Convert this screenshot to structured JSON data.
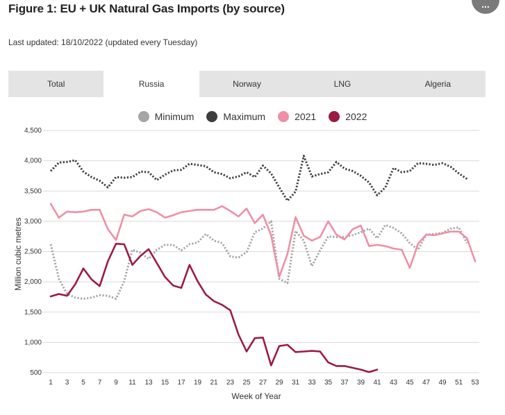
{
  "header": {
    "title": "Figure 1: EU + UK Natural Gas Imports (by source)",
    "subtitle": "Last updated: 18/10/2022 (updated every Tuesday)",
    "menu_label": "..."
  },
  "tabs": [
    {
      "label": "Total",
      "active": false
    },
    {
      "label": "Russia",
      "active": true
    },
    {
      "label": "Norway",
      "active": false
    },
    {
      "label": "LNG",
      "active": false
    },
    {
      "label": "Algeria",
      "active": false
    }
  ],
  "colors": {
    "minimum": "#a6a6a6",
    "maximum": "#3d3d3d",
    "y2021": "#ef8fa6",
    "y2022": "#9b1b43",
    "grid": "#d9d9d9"
  },
  "chart_data": {
    "type": "line",
    "xlabel": "Week of Year",
    "ylabel": "Million cubic metres",
    "xlim": [
      0,
      54
    ],
    "ylim": [
      450,
      4600
    ],
    "x_ticks": [
      1,
      3,
      5,
      7,
      9,
      11,
      13,
      15,
      17,
      19,
      21,
      23,
      25,
      27,
      29,
      31,
      33,
      35,
      37,
      39,
      41,
      43,
      45,
      47,
      49,
      51,
      53
    ],
    "y_ticks": [
      500,
      1000,
      1500,
      2000,
      2500,
      3000,
      3500,
      4000,
      4500
    ],
    "y_tick_labels": [
      "500",
      "1,000",
      "1,500",
      "2,000",
      "2,500",
      "3,000",
      "3,500",
      "4,000",
      "4,500"
    ],
    "grid": true,
    "legend_position": "top",
    "series": [
      {
        "name": "Minimum",
        "style": "dotted",
        "color": "#a6a6a6",
        "x": [
          1,
          2,
          3,
          4,
          5,
          6,
          7,
          8,
          9,
          10,
          11,
          12,
          13,
          14,
          15,
          16,
          17,
          18,
          19,
          20,
          21,
          22,
          23,
          24,
          25,
          26,
          27,
          28,
          29,
          30,
          31,
          32,
          33,
          34,
          35,
          36,
          37,
          38,
          39,
          40,
          41,
          42,
          43,
          44,
          45,
          46,
          47,
          48,
          49,
          50,
          51,
          52
        ],
        "y": [
          2620,
          2050,
          1800,
          1740,
          1720,
          1740,
          1780,
          1770,
          1720,
          2010,
          2530,
          2480,
          2380,
          2530,
          2610,
          2610,
          2520,
          2620,
          2650,
          2790,
          2680,
          2640,
          2420,
          2400,
          2490,
          2820,
          2880,
          3000,
          2050,
          1980,
          2840,
          2680,
          2260,
          2520,
          2750,
          2740,
          2740,
          2770,
          2820,
          2880,
          2720,
          2940,
          2890,
          2800,
          2640,
          2530,
          2780,
          2790,
          2810,
          2880,
          2900,
          2640
        ]
      },
      {
        "name": "Maximum",
        "style": "dotted",
        "color": "#3d3d3d",
        "x": [
          1,
          2,
          3,
          4,
          5,
          6,
          7,
          8,
          9,
          10,
          11,
          12,
          13,
          14,
          15,
          16,
          17,
          18,
          19,
          20,
          21,
          22,
          23,
          24,
          25,
          26,
          27,
          28,
          29,
          30,
          31,
          32,
          33,
          34,
          35,
          36,
          37,
          38,
          39,
          40,
          41,
          42,
          43,
          44,
          45,
          46,
          47,
          48,
          49,
          50,
          51,
          52
        ],
        "y": [
          3830,
          3970,
          3980,
          4010,
          3820,
          3730,
          3670,
          3560,
          3730,
          3720,
          3730,
          3820,
          3810,
          3680,
          3770,
          3840,
          3850,
          3950,
          3930,
          3910,
          3810,
          3780,
          3710,
          3740,
          3810,
          3730,
          3920,
          3790,
          3560,
          3340,
          3490,
          4080,
          3740,
          3780,
          3810,
          3980,
          3870,
          3830,
          3750,
          3640,
          3430,
          3560,
          3880,
          3810,
          3830,
          3960,
          3950,
          3930,
          3960,
          3900,
          3790,
          3700
        ]
      },
      {
        "name": "2021",
        "style": "solid",
        "color": "#ef8fa6",
        "x": [
          1,
          2,
          3,
          4,
          5,
          6,
          7,
          8,
          9,
          10,
          11,
          12,
          13,
          14,
          15,
          16,
          17,
          18,
          19,
          20,
          21,
          22,
          23,
          24,
          25,
          26,
          27,
          28,
          29,
          30,
          31,
          32,
          33,
          34,
          35,
          36,
          37,
          38,
          39,
          40,
          41,
          42,
          43,
          44,
          45,
          46,
          47,
          48,
          49,
          50,
          51,
          52,
          53
        ],
        "y": [
          3290,
          3060,
          3160,
          3150,
          3160,
          3190,
          3190,
          2870,
          2690,
          3110,
          3080,
          3170,
          3200,
          3150,
          3060,
          3100,
          3150,
          3170,
          3190,
          3190,
          3190,
          3250,
          3170,
          3080,
          3210,
          2970,
          3110,
          2770,
          2080,
          2460,
          3070,
          2760,
          2680,
          2740,
          3000,
          2780,
          2700,
          2870,
          2930,
          2590,
          2610,
          2590,
          2550,
          2530,
          2230,
          2630,
          2780,
          2770,
          2800,
          2830,
          2830,
          2720,
          2340
        ]
      },
      {
        "name": "2022",
        "style": "solid",
        "color": "#9b1b43",
        "x": [
          1,
          2,
          3,
          4,
          5,
          6,
          7,
          8,
          9,
          10,
          11,
          12,
          13,
          14,
          15,
          16,
          17,
          18,
          19,
          20,
          21,
          22,
          23,
          24,
          25,
          26,
          27,
          28,
          29,
          30,
          31,
          32,
          33,
          34,
          35,
          36,
          37,
          38,
          39,
          40,
          41
        ],
        "y": [
          1760,
          1800,
          1770,
          1960,
          2220,
          2040,
          1930,
          2340,
          2630,
          2620,
          2280,
          2430,
          2540,
          2310,
          2080,
          1940,
          1900,
          2280,
          2010,
          1790,
          1680,
          1620,
          1530,
          1130,
          850,
          1070,
          1080,
          620,
          940,
          960,
          840,
          850,
          860,
          850,
          670,
          610,
          610,
          580,
          550,
          510,
          550
        ]
      }
    ]
  }
}
